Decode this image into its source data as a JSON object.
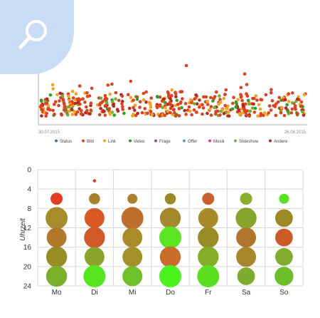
{
  "badge": {
    "icon": "search-icon"
  },
  "chart_data": [
    {
      "type": "scatter",
      "x_range": [
        "30.07.2015",
        "26.08.2015"
      ],
      "x_start_label": "30.07.2015",
      "x_end_label": "26.08.2015",
      "legend": [
        {
          "name": "Status",
          "color": "#3d6fa0"
        },
        {
          "name": "Bild",
          "color": "#e0401d"
        },
        {
          "name": "Link",
          "color": "#f5a31e"
        },
        {
          "name": "Video",
          "color": "#2aa02a"
        },
        {
          "name": "Frage",
          "color": "#9b3fb8"
        },
        {
          "name": "Offer",
          "color": "#4a9fd6"
        },
        {
          "name": "Musik",
          "color": "#e23e8e"
        },
        {
          "name": "Slideshow",
          "color": "#6bb330"
        },
        {
          "name": "Andere",
          "color": "#b22b1f"
        }
      ],
      "outliers_bild": [
        {
          "x_frac": 0.34,
          "level": 0.7
        },
        {
          "x_frac": 0.55,
          "level": 1.0
        },
        {
          "x_frac": 0.77,
          "level": 0.84
        }
      ],
      "legend_position": "bottom",
      "grid": false
    },
    {
      "type": "bubble",
      "ylabel": "Uhrzeit",
      "yticks": [
        "0",
        "4",
        "8",
        "12",
        "16",
        "20",
        "24"
      ],
      "categories": [
        "Mo",
        "Di",
        "Mi",
        "Do",
        "Fr",
        "Sa",
        "So"
      ],
      "time_bins": [
        "6",
        "10",
        "14",
        "18",
        "22"
      ],
      "sizes": [
        [
          0.55,
          1.0,
          0.9,
          0.95,
          0.95
        ],
        [
          0.5,
          0.9,
          0.95,
          0.9,
          1.0
        ],
        [
          0.45,
          1.0,
          0.9,
          0.9,
          0.9
        ],
        [
          0.5,
          0.95,
          1.0,
          0.95,
          1.0
        ],
        [
          0.55,
          0.9,
          0.95,
          0.95,
          1.0
        ],
        [
          0.55,
          0.95,
          0.9,
          0.9,
          0.8
        ],
        [
          0.45,
          0.8,
          0.8,
          0.8,
          0.85
        ]
      ],
      "colors": [
        [
          "#e63b22",
          "#a88b2a",
          "#b07a2a",
          "#9a8c24",
          "#7ab02a"
        ],
        [
          "#a88228",
          "#d95824",
          "#d2592a",
          "#8aa52a",
          "#55e61e"
        ],
        [
          "#a88228",
          "#bd6e2a",
          "#a98b28",
          "#a4912a",
          "#6fc12a"
        ],
        [
          "#9a8c24",
          "#a4882a",
          "#5ae521",
          "#c86d2a",
          "#4bf21c"
        ],
        [
          "#c8622b",
          "#a98a28",
          "#9a8c24",
          "#84ad2a",
          "#5adf1f"
        ],
        [
          "#88b02a",
          "#88a42a",
          "#b2752c",
          "#a8862a",
          "#7dac2d"
        ],
        [
          "#57e41e",
          "#9c8a26",
          "#cd5b28",
          "#84ac2c",
          "#6cbf28"
        ]
      ],
      "extra_points": [
        {
          "category": "Di",
          "hour": 2.3,
          "color": "#e04124"
        }
      ]
    }
  ]
}
